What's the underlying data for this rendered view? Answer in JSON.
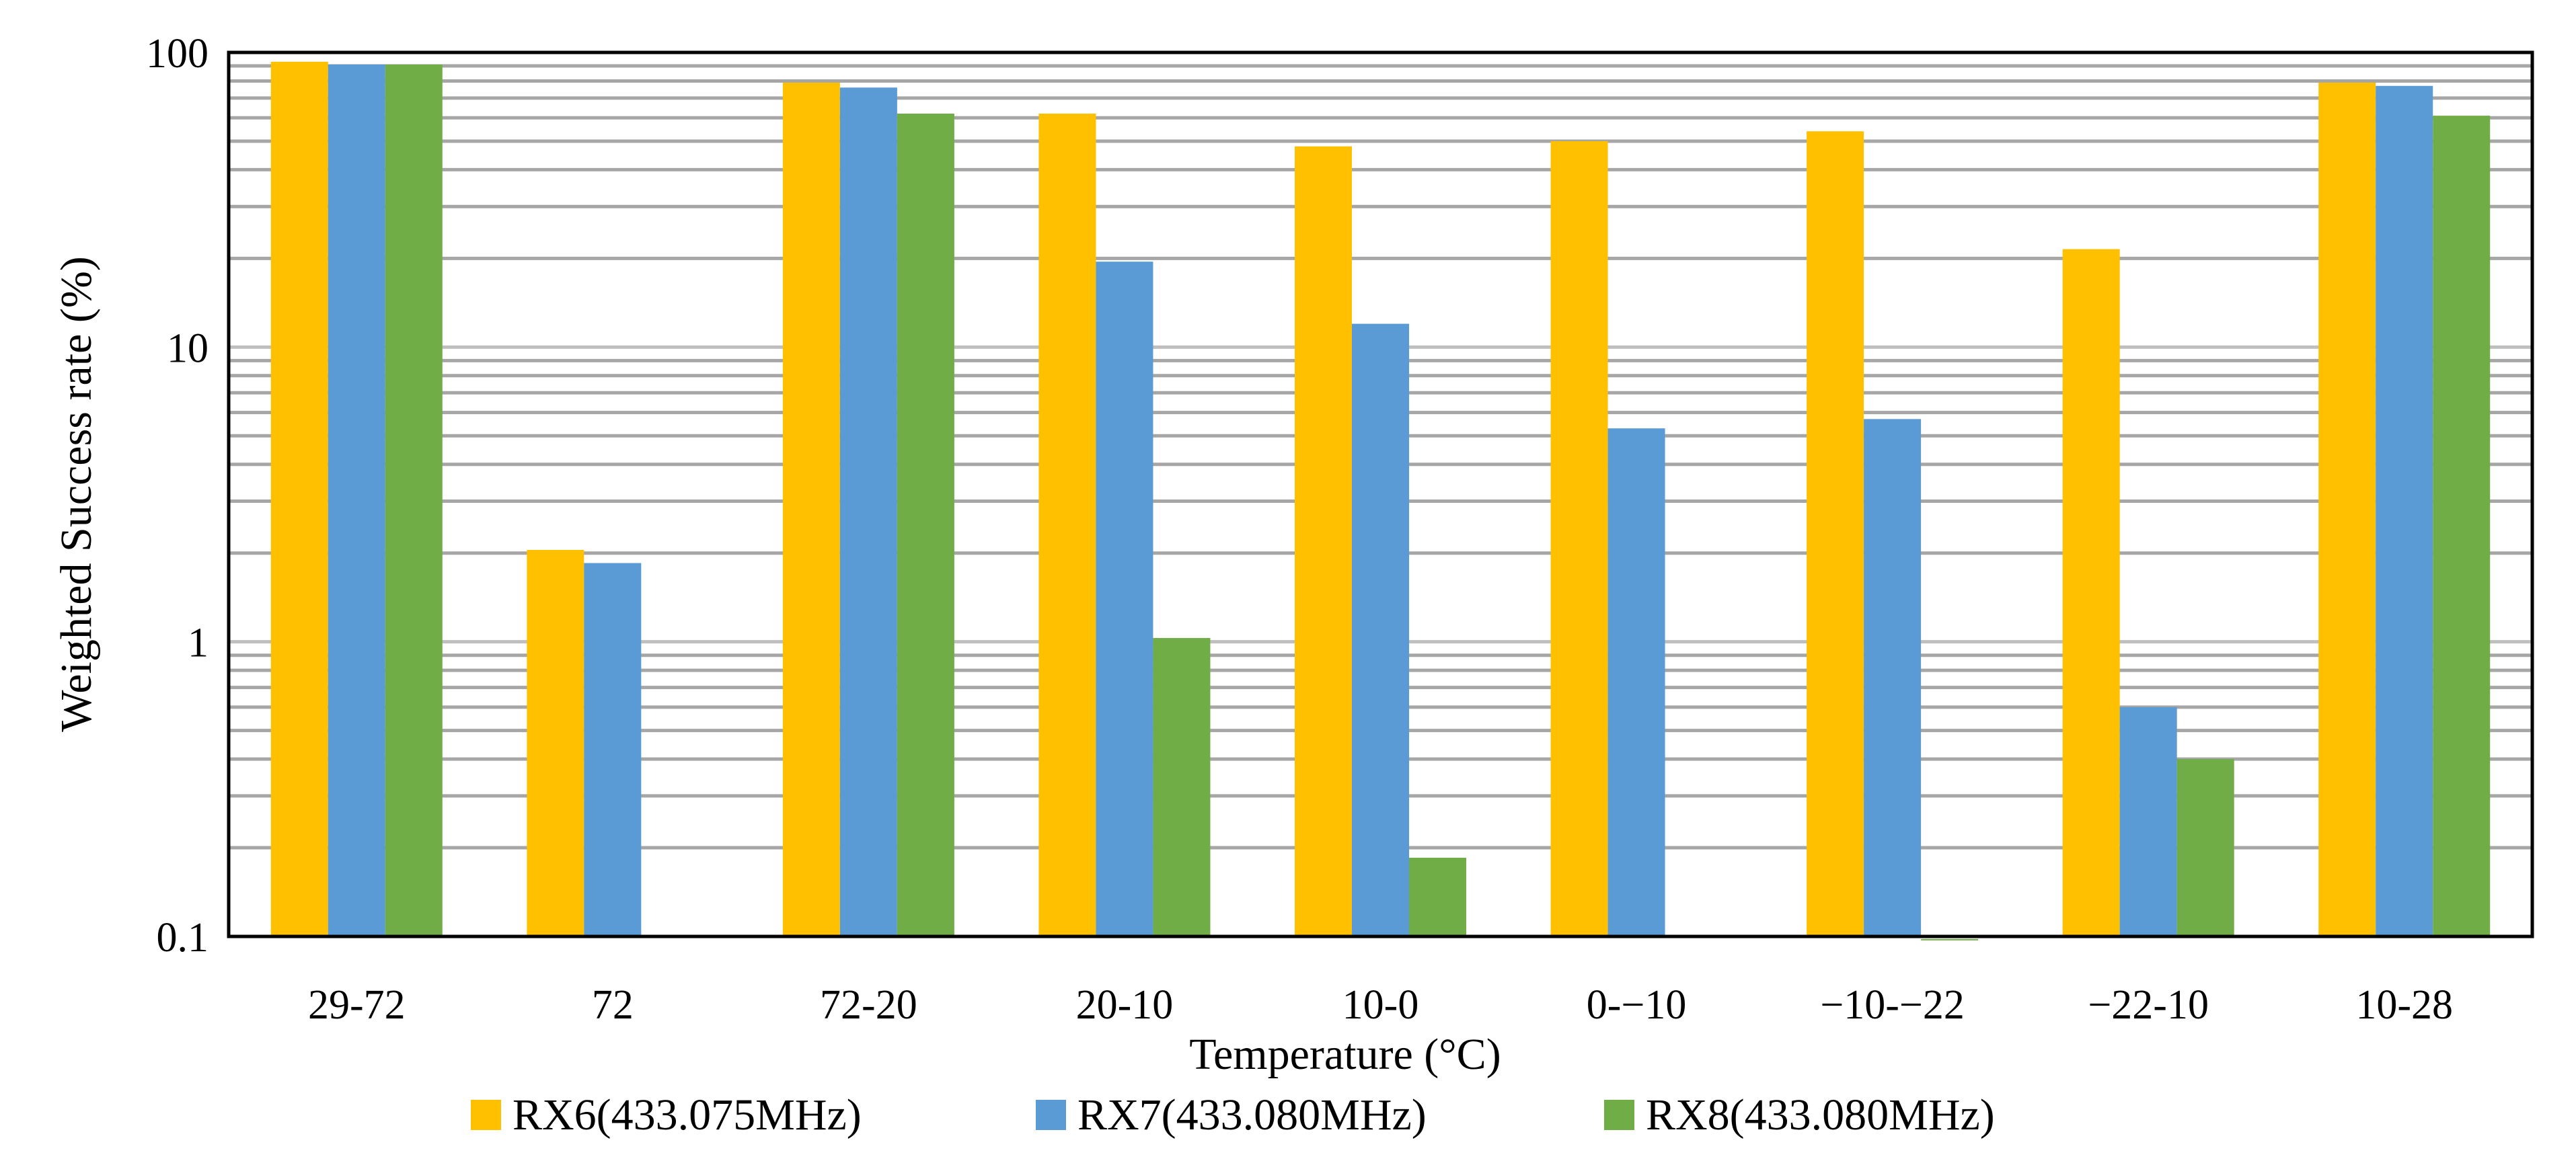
{
  "chart_data": {
    "type": "bar",
    "scale": "log",
    "title": "",
    "xlabel": "Temperature (°C)",
    "ylabel": "Weighted Success rate (%)",
    "ylim": [
      0.1,
      100
    ],
    "y_ticks": [
      {
        "value": 0.1,
        "label": "0.1"
      },
      {
        "value": 1,
        "label": "1"
      },
      {
        "value": 10,
        "label": "10"
      },
      {
        "value": 100,
        "label": "100"
      }
    ],
    "categories": [
      "29-72",
      "72",
      "72-20",
      "20-10",
      "10-0",
      "0-−10",
      "−10-−22",
      "−22-10",
      "10-28"
    ],
    "grid": "major and minor horizontal",
    "legend_position": "bottom",
    "series": [
      {
        "name": "RX6(433.075MHz)",
        "color": "#FFC000",
        "values": [
          93,
          2.05,
          79,
          62,
          48,
          50,
          54,
          21.5,
          79
        ]
      },
      {
        "name": "RX7(433.080MHz)",
        "color": "#5B9BD5",
        "values": [
          91,
          1.85,
          76,
          19.5,
          12,
          5.3,
          5.7,
          0.6,
          77
        ]
      },
      {
        "name": "RX8(433.080MHz)",
        "color": "#70AD47",
        "values": [
          91,
          null,
          62,
          1.03,
          0.185,
          null,
          0.098,
          0.4,
          61
        ]
      }
    ]
  }
}
